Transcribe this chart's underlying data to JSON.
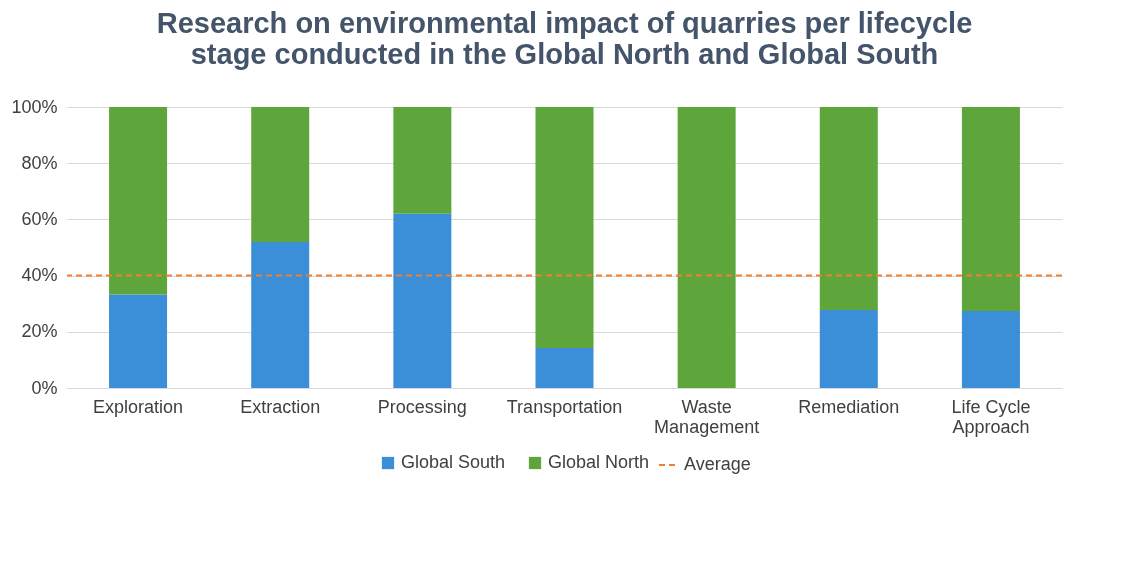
{
  "chart_data": {
    "type": "bar",
    "title": "Research on environmental impact of quarries per lifecycle stage conducted in the Global North and Global South",
    "categories": [
      "Exploration",
      "Extraction",
      "Processing",
      "Transportation",
      "Waste Management",
      "Remediation",
      "Life Cycle Approach"
    ],
    "stacked": true,
    "series": [
      {
        "name": "Global South",
        "color": "#3b8fd8",
        "values": [
          33.3,
          52,
          62,
          14.2,
          0,
          27.8,
          27.4
        ]
      },
      {
        "name": "Global North",
        "color": "#5ea63b",
        "values": [
          66.7,
          48,
          38,
          85.8,
          100,
          72.2,
          72.6
        ]
      }
    ],
    "ylim": [
      0,
      100
    ],
    "yticks": [
      {
        "value": 0,
        "label": "0%"
      },
      {
        "value": 20,
        "label": "20%"
      },
      {
        "value": 40,
        "label": "40%"
      },
      {
        "value": 60,
        "label": "60%"
      },
      {
        "value": 80,
        "label": "80%"
      },
      {
        "value": 100,
        "label": "100%"
      }
    ],
    "ref_lines": [
      {
        "axis": "y",
        "value": 40,
        "label": "Average",
        "color": "#f08030",
        "line_style": "dashed"
      }
    ],
    "grid": "y",
    "legend": "bottom"
  }
}
